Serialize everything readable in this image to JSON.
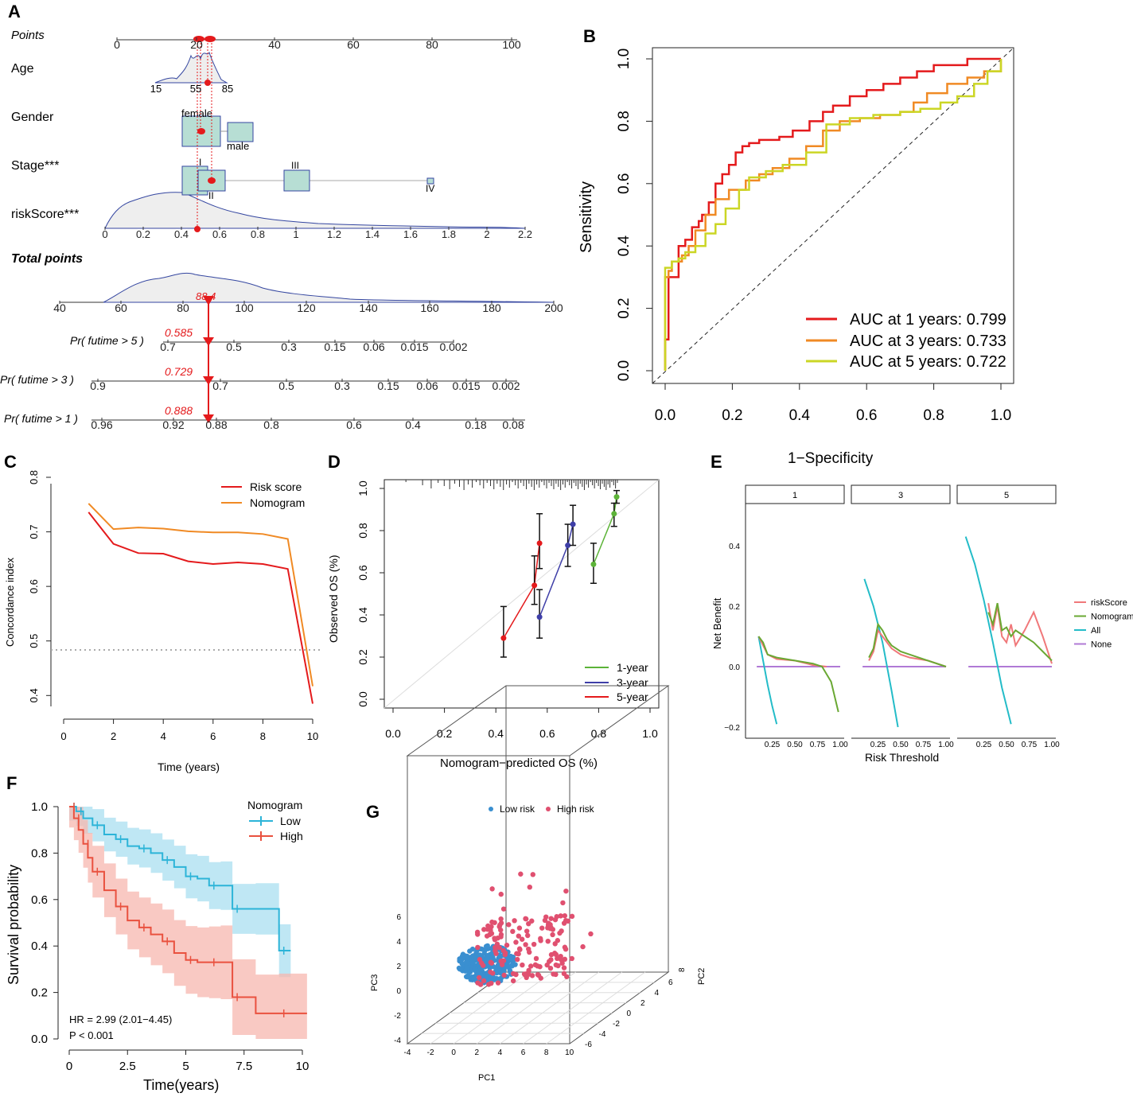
{
  "chart_data": [
    {
      "panel": "A",
      "type": "nomogram",
      "rows": [
        {
          "label": "Points",
          "ticks": [
            "0",
            "20",
            "40",
            "60",
            "80",
            "100"
          ]
        },
        {
          "label": "Age",
          "ticks": [
            "15",
            "55",
            "85"
          ]
        },
        {
          "label": "Gender",
          "levels": [
            "female",
            "male"
          ]
        },
        {
          "label": "Stage***",
          "levels": [
            "I",
            "II",
            "III",
            "IV"
          ]
        },
        {
          "label": "riskScore***",
          "ticks": [
            "0",
            "0.2",
            "0.4",
            "0.6",
            "0.8",
            "1",
            "1.2",
            "1.4",
            "1.6",
            "1.8",
            "2",
            "2.2"
          ]
        },
        {
          "label": "Total points",
          "ticks": [
            "40",
            "60",
            "80",
            "100",
            "120",
            "140",
            "160",
            "180",
            "200"
          ],
          "value": "88.4"
        },
        {
          "label": "Pr( futime > 5 )",
          "ticks": [
            "0.7",
            "0.5",
            "0.3",
            "0.15",
            "0.06",
            "0.015",
            "0.002"
          ],
          "value": "0.585"
        },
        {
          "label": "Pr( futime > 3 )",
          "ticks": [
            "0.9",
            "0.7",
            "0.5",
            "0.3",
            "0.15",
            "0.06",
            "0.015",
            "0.002"
          ],
          "value": "0.729"
        },
        {
          "label": "Pr( futime > 1 )",
          "ticks": [
            "0.96",
            "0.92",
            "0.88",
            "0.8",
            "0.6",
            "0.4",
            "0.18",
            "0.08"
          ],
          "value": "0.888"
        }
      ]
    },
    {
      "panel": "B",
      "type": "line",
      "title": "",
      "xlabel": "1−Specificity",
      "ylabel": "Sensitivity",
      "xlim": [
        0,
        1
      ],
      "ylim": [
        0,
        1
      ],
      "ticks": [
        "0.0",
        "0.2",
        "0.4",
        "0.6",
        "0.8",
        "1.0"
      ],
      "series": [
        {
          "name": "AUC at 1 years: 0.799",
          "color": "#e41a1c",
          "x": [
            0,
            0,
            0.01,
            0.01,
            0.04,
            0.04,
            0.06,
            0.08,
            0.1,
            0.11,
            0.13,
            0.15,
            0.17,
            0.19,
            0.21,
            0.23,
            0.25,
            0.28,
            0.31,
            0.34,
            0.38,
            0.43,
            0.47,
            0.5,
            0.55,
            0.6,
            0.65,
            0.7,
            0.75,
            0.8,
            0.9,
            1.0
          ],
          "y": [
            0,
            0.1,
            0.2,
            0.3,
            0.36,
            0.4,
            0.42,
            0.46,
            0.48,
            0.5,
            0.54,
            0.6,
            0.63,
            0.66,
            0.7,
            0.72,
            0.73,
            0.74,
            0.74,
            0.75,
            0.77,
            0.8,
            0.83,
            0.85,
            0.88,
            0.9,
            0.92,
            0.94,
            0.96,
            0.98,
            1.0,
            1.0
          ]
        },
        {
          "name": "AUC at 3 years: 0.733",
          "color": "#f08a24",
          "x": [
            0,
            0,
            0.01,
            0.02,
            0.05,
            0.07,
            0.09,
            0.12,
            0.15,
            0.19,
            0.24,
            0.28,
            0.32,
            0.37,
            0.42,
            0.47,
            0.52,
            0.58,
            0.64,
            0.7,
            0.74,
            0.78,
            0.84,
            0.9,
            0.95,
            1.0
          ],
          "y": [
            0,
            0.3,
            0.32,
            0.35,
            0.37,
            0.4,
            0.45,
            0.5,
            0.55,
            0.58,
            0.61,
            0.63,
            0.65,
            0.68,
            0.72,
            0.77,
            0.8,
            0.81,
            0.82,
            0.83,
            0.86,
            0.89,
            0.92,
            0.94,
            0.96,
            1.0
          ]
        },
        {
          "name": "AUC at 5 years: 0.722",
          "color": "#cbd625",
          "x": [
            0,
            0,
            0.02,
            0.04,
            0.06,
            0.09,
            0.12,
            0.15,
            0.18,
            0.22,
            0.25,
            0.3,
            0.35,
            0.42,
            0.48,
            0.55,
            0.62,
            0.7,
            0.76,
            0.82,
            0.87,
            0.92,
            0.96,
            1.0
          ],
          "y": [
            0,
            0.33,
            0.35,
            0.36,
            0.38,
            0.4,
            0.44,
            0.47,
            0.52,
            0.58,
            0.62,
            0.64,
            0.66,
            0.7,
            0.79,
            0.81,
            0.82,
            0.83,
            0.84,
            0.86,
            0.88,
            0.92,
            0.96,
            1.0
          ]
        }
      ]
    },
    {
      "panel": "C",
      "type": "line",
      "xlabel": "Time (years)",
      "ylabel": "Concordance index",
      "xlim": [
        0,
        10
      ],
      "ylim": [
        0.38,
        0.8
      ],
      "xticks": [
        "0",
        "2",
        "4",
        "6",
        "8",
        "10"
      ],
      "yticks": [
        "0.4",
        "0.5",
        "0.6",
        "0.7",
        "0.8"
      ],
      "reference_y": 0.5,
      "series": [
        {
          "name": "Risk score",
          "color": "#e41a1c",
          "x": [
            1,
            2,
            3,
            4,
            5,
            6,
            7,
            8,
            9,
            10
          ],
          "y": [
            0.736,
            0.678,
            0.661,
            0.66,
            0.646,
            0.641,
            0.644,
            0.641,
            0.632,
            0.385
          ]
        },
        {
          "name": "Nomogram",
          "color": "#f08a24",
          "x": [
            1,
            2,
            3,
            4,
            5,
            6,
            7,
            8,
            9,
            10
          ],
          "y": [
            0.752,
            0.705,
            0.708,
            0.706,
            0.701,
            0.699,
            0.699,
            0.696,
            0.687,
            0.417
          ]
        }
      ]
    },
    {
      "panel": "D",
      "type": "scatter",
      "xlabel": "Nomogram−predicted OS (%)",
      "ylabel": "Observed OS (%)",
      "xlim": [
        -0.02,
        1.02
      ],
      "ylim": [
        -0.04,
        1.04
      ],
      "ticks": [
        "0.0",
        "0.2",
        "0.4",
        "0.6",
        "0.8",
        "1.0"
      ],
      "series": [
        {
          "name": "1-year",
          "color": "#5cb338",
          "x": [
            0.78,
            0.86,
            0.87
          ],
          "y": [
            0.64,
            0.88,
            0.96
          ],
          "lo": [
            0.55,
            0.82,
            0.93
          ],
          "hi": [
            0.74,
            0.93,
            0.99
          ]
        },
        {
          "name": "3-year",
          "color": "#3f3fa8",
          "x": [
            0.57,
            0.68,
            0.7
          ],
          "y": [
            0.39,
            0.73,
            0.83
          ],
          "lo": [
            0.29,
            0.63,
            0.73
          ],
          "hi": [
            0.52,
            0.83,
            0.92
          ]
        },
        {
          "name": "5-year",
          "color": "#e41a1c",
          "x": [
            0.43,
            0.55,
            0.57
          ],
          "y": [
            0.29,
            0.54,
            0.74
          ],
          "lo": [
            0.2,
            0.45,
            0.62
          ],
          "hi": [
            0.44,
            0.68,
            0.88
          ]
        }
      ]
    },
    {
      "panel": "E",
      "type": "line",
      "xlabel": "Risk Threshold",
      "ylabel": "Net Benefit",
      "facets": [
        "1",
        "3",
        "5"
      ],
      "xticks": [
        "0.25",
        "0.50",
        "0.75",
        "1.00"
      ],
      "yticks": [
        "0.4",
        "0.2",
        "0.0",
        "−0.2"
      ],
      "ylim": [
        -0.2,
        0.5
      ],
      "legend": [
        {
          "name": "riskScore",
          "color": "#f0787a"
        },
        {
          "name": "Nomogram",
          "color": "#6aa833"
        },
        {
          "name": "All",
          "color": "#24bcc8"
        },
        {
          "name": "None",
          "color": "#b07ad6"
        }
      ],
      "facet_series": [
        {
          "riskScore": {
            "x": [
              0.1,
              0.2,
              0.3,
              0.5,
              0.7,
              0.85
            ],
            "y": [
              0.1,
              0.04,
              0.025,
              0.02,
              0.005,
              0.0
            ]
          },
          "Nomogram": {
            "x": [
              0.1,
              0.15,
              0.2,
              0.3,
              0.5,
              0.7,
              0.8,
              0.9,
              0.98
            ],
            "y": [
              0.1,
              0.08,
              0.04,
              0.03,
              0.02,
              0.01,
              0.0,
              -0.05,
              -0.15
            ]
          },
          "All": {
            "x": [
              0.1,
              0.15,
              0.2,
              0.25,
              0.3
            ],
            "y": [
              0.1,
              0.02,
              -0.06,
              -0.13,
              -0.19
            ]
          }
        },
        {
          "riskScore": {
            "x": [
              0.15,
              0.2,
              0.25,
              0.3,
              0.35,
              0.4,
              0.5,
              0.6,
              0.8,
              1.0
            ],
            "y": [
              0.02,
              0.05,
              0.12,
              0.1,
              0.08,
              0.06,
              0.04,
              0.03,
              0.02,
              0.0
            ]
          },
          "Nomogram": {
            "x": [
              0.15,
              0.2,
              0.25,
              0.3,
              0.35,
              0.4,
              0.5,
              0.6,
              0.8,
              1.0
            ],
            "y": [
              0.03,
              0.06,
              0.14,
              0.12,
              0.09,
              0.07,
              0.05,
              0.04,
              0.02,
              0.0
            ]
          },
          "All": {
            "x": [
              0.1,
              0.2,
              0.3,
              0.4,
              0.47
            ],
            "y": [
              0.29,
              0.2,
              0.08,
              -0.08,
              -0.2
            ]
          }
        },
        {
          "riskScore": {
            "x": [
              0.3,
              0.35,
              0.4,
              0.45,
              0.5,
              0.55,
              0.6,
              0.7,
              0.8,
              0.9,
              1.0
            ],
            "y": [
              0.21,
              0.12,
              0.2,
              0.1,
              0.08,
              0.14,
              0.07,
              0.12,
              0.18,
              0.1,
              0.01
            ]
          },
          "Nomogram": {
            "x": [
              0.3,
              0.35,
              0.4,
              0.45,
              0.5,
              0.55,
              0.6,
              0.7,
              0.8,
              0.9,
              1.0
            ],
            "y": [
              0.18,
              0.14,
              0.21,
              0.12,
              0.13,
              0.1,
              0.12,
              0.1,
              0.08,
              0.05,
              0.02
            ]
          },
          "All": {
            "x": [
              0.05,
              0.15,
              0.25,
              0.35,
              0.45,
              0.55
            ],
            "y": [
              0.43,
              0.34,
              0.22,
              0.08,
              -0.07,
              -0.19
            ]
          }
        }
      ]
    },
    {
      "panel": "F",
      "type": "line",
      "xlabel": "Time(years)",
      "ylabel": "Survival probability",
      "xlim": [
        0,
        10.3
      ],
      "ylim": [
        0,
        1
      ],
      "xticks": [
        "0",
        "2.5",
        "5",
        "7.5",
        "10"
      ],
      "yticks": [
        "0.0",
        "0.2",
        "0.4",
        "0.6",
        "0.8",
        "1.0"
      ],
      "legend_title": "Nomogram",
      "hr_text": "HR = 2.99 (2.01−4.45)",
      "p_text": "P < 0.001",
      "series": [
        {
          "name": "Low",
          "color": "#2cb4d8",
          "x": [
            0,
            0.3,
            0.6,
            1,
            1.5,
            2,
            2.5,
            3,
            3.5,
            4,
            4.5,
            5,
            5.5,
            6,
            6.5,
            7,
            8,
            9,
            9.5
          ],
          "y": [
            1,
            0.98,
            0.95,
            0.92,
            0.88,
            0.86,
            0.83,
            0.82,
            0.8,
            0.77,
            0.74,
            0.7,
            0.69,
            0.66,
            0.66,
            0.56,
            0.56,
            0.38,
            0.38
          ]
        },
        {
          "name": "High",
          "color": "#e9513f",
          "x": [
            0,
            0.2,
            0.4,
            0.6,
            0.8,
            1,
            1.5,
            2,
            2.5,
            3,
            3.5,
            4,
            4.5,
            5,
            5.5,
            6,
            6.5,
            7,
            8,
            9,
            10.2
          ],
          "y": [
            1,
            0.95,
            0.9,
            0.84,
            0.78,
            0.72,
            0.64,
            0.57,
            0.51,
            0.48,
            0.45,
            0.42,
            0.37,
            0.34,
            0.33,
            0.33,
            0.33,
            0.18,
            0.11,
            0.11,
            0.11
          ]
        }
      ]
    },
    {
      "panel": "G",
      "type": "scatter3d",
      "xlabel": "PC1",
      "ylabel": "PC3",
      "zlabel": "PC2",
      "pc1_ticks": [
        "-4",
        "-2",
        "0",
        "2",
        "4",
        "6",
        "8",
        "10"
      ],
      "pc3_ticks": [
        "6",
        "4",
        "2",
        "0",
        "-2",
        "-4"
      ],
      "pc2_ticks": [
        "6",
        "4",
        "2",
        "0",
        "-2",
        "-4",
        "-6"
      ],
      "extra_tick": "8",
      "legend": [
        {
          "name": "Low risk",
          "color": "#3a8fd0"
        },
        {
          "name": "High risk",
          "color": "#e05070"
        }
      ]
    }
  ],
  "panels": [
    "A",
    "B",
    "C",
    "D",
    "E",
    "F",
    "G"
  ]
}
